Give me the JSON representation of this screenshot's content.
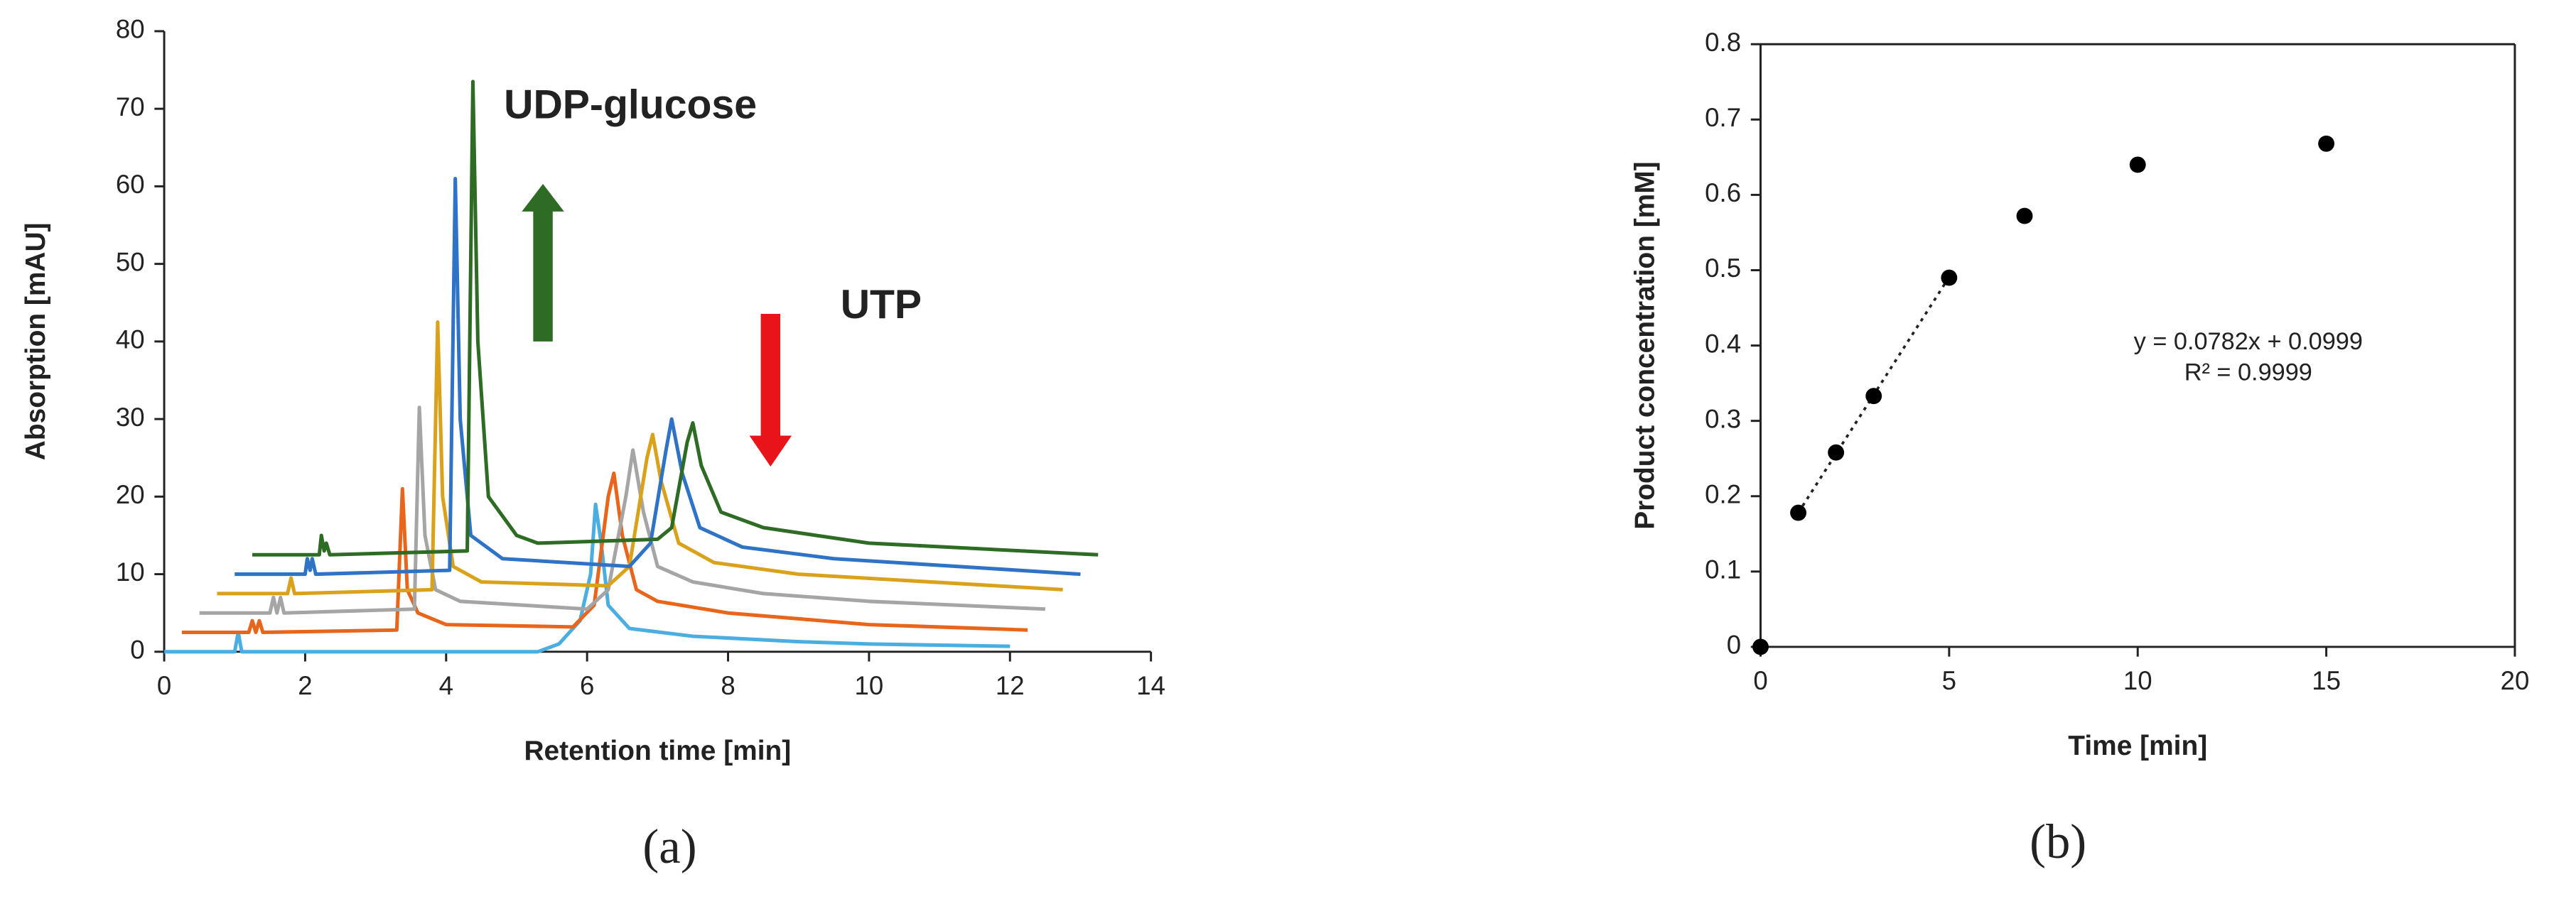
{
  "chart_data": [
    {
      "type": "line",
      "panel_label": "(a)",
      "x_label": "Retention time [min]",
      "y_label": "Absorption [mAU]",
      "xlim": [
        0,
        14
      ],
      "xticks": [
        0,
        2,
        4,
        6,
        8,
        10,
        12,
        14
      ],
      "ylim": [
        0,
        80
      ],
      "yticks": [
        0,
        10,
        20,
        30,
        40,
        50,
        60,
        70,
        80
      ],
      "annotations": [
        "UDP-glucose",
        "UTP"
      ],
      "series": [
        {
          "color": "#4aaee0",
          "x": [
            0,
            1.0,
            1.05,
            1.1,
            1.2,
            3,
            5.3,
            5.6,
            5.9,
            6.05,
            6.12,
            6.2,
            6.3,
            6.5,
            6.6,
            7.5,
            9,
            10,
            12
          ],
          "values": [
            0,
            0,
            2.5,
            0,
            0,
            0,
            0,
            1,
            4,
            10,
            19,
            14,
            6,
            4,
            3,
            2,
            1.3,
            1,
            0.7
          ]
        },
        {
          "color": "#e8651c",
          "x": [
            0.25,
            1.2,
            1.25,
            1.3,
            1.35,
            1.4,
            3.3,
            3.38,
            3.45,
            3.6,
            4,
            5.8,
            6.1,
            6.3,
            6.38,
            6.5,
            6.7,
            7,
            8,
            10,
            12.25
          ],
          "values": [
            2.5,
            2.5,
            4,
            2.5,
            4,
            2.5,
            2.8,
            21,
            8,
            5,
            3.5,
            3.2,
            6,
            20,
            23,
            15,
            8,
            6.5,
            5,
            3.5,
            2.8
          ]
        },
        {
          "color": "#a5a5a5",
          "x": [
            0.5,
            1.5,
            1.55,
            1.6,
            1.65,
            1.7,
            3.55,
            3.62,
            3.7,
            3.85,
            4.2,
            6,
            6.3,
            6.55,
            6.65,
            6.8,
            7,
            7.5,
            8.5,
            10,
            12.5
          ],
          "values": [
            5,
            5,
            7,
            5,
            7,
            5,
            5.5,
            31.5,
            15,
            8,
            6.5,
            5.5,
            8,
            20,
            26,
            18,
            11,
            9,
            7.5,
            6.5,
            5.5
          ]
        },
        {
          "color": "#d9a21a",
          "x": [
            0.75,
            1.75,
            1.8,
            1.85,
            3.8,
            3.88,
            3.95,
            4.1,
            4.5,
            6.3,
            6.6,
            6.85,
            6.93,
            7.05,
            7.3,
            7.8,
            9,
            12.75
          ],
          "values": [
            7.5,
            7.5,
            9.5,
            7.5,
            8,
            42.5,
            20,
            11,
            9,
            8.5,
            11,
            25,
            28,
            22,
            14,
            11.5,
            10,
            8
          ]
        },
        {
          "color": "#2f73c6",
          "x": [
            1,
            2,
            2.03,
            2.07,
            2.1,
            2.15,
            4.05,
            4.13,
            4.2,
            4.35,
            4.8,
            6.6,
            6.9,
            7.12,
            7.2,
            7.35,
            7.6,
            8.2,
            9.5,
            13
          ],
          "values": [
            10,
            10,
            12,
            10.5,
            12,
            10,
            10.5,
            61,
            30,
            15,
            12,
            11,
            14,
            26,
            30,
            23,
            16,
            13.5,
            12,
            10
          ]
        },
        {
          "color": "#2e6b24",
          "x": [
            1.25,
            2.2,
            2.23,
            2.27,
            2.3,
            2.35,
            4.3,
            4.38,
            4.45,
            4.6,
            5,
            5.3,
            7,
            7.2,
            7.42,
            7.5,
            7.62,
            7.9,
            8.5,
            10,
            13.25
          ],
          "values": [
            12.5,
            12.5,
            15,
            13,
            14,
            12.5,
            13,
            73.5,
            40,
            20,
            15,
            14,
            14.5,
            16,
            27,
            29.5,
            24,
            18,
            16,
            14,
            12.5
          ]
        }
      ]
    },
    {
      "type": "scatter",
      "panel_label": "(b)",
      "x_label": "Time [min]",
      "y_label": "Product concentration [mM]",
      "xlim": [
        0,
        20
      ],
      "xticks": [
        0,
        5,
        10,
        15,
        20
      ],
      "ylim": [
        0,
        0.8
      ],
      "yticks": [
        0,
        0.1,
        0.2,
        0.3,
        0.4,
        0.5,
        0.6,
        0.7,
        0.8
      ],
      "color": "#000000",
      "x": [
        0,
        1,
        2,
        3,
        5,
        7,
        10,
        15
      ],
      "values": [
        0,
        0.178,
        0.258,
        0.333,
        0.49,
        0.572,
        0.64,
        0.668
      ],
      "trendline": {
        "slope": 0.0782,
        "intercept": 0.0999,
        "x_range": [
          1,
          5
        ],
        "equation": "y = 0.0782x + 0.0999",
        "r2": "R² = 0.9999"
      }
    }
  ]
}
